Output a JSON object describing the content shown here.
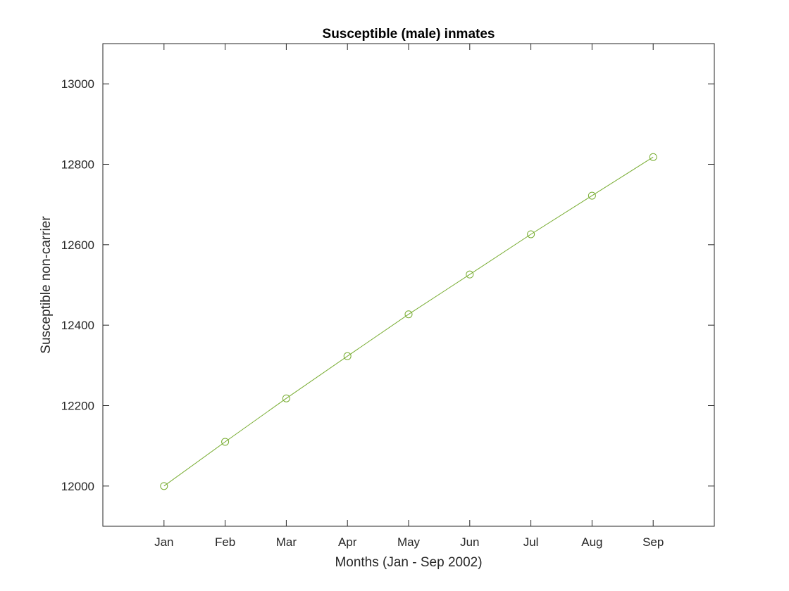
{
  "chart_data": {
    "type": "line",
    "title": "Susceptible (male) inmates",
    "xlabel": "Months (Jan - Sep 2002)",
    "ylabel": "Susceptible non-carrier",
    "categories": [
      "Jan",
      "Feb",
      "Mar",
      "Apr",
      "May",
      "Jun",
      "Jul",
      "Aug",
      "Sep"
    ],
    "series": [
      {
        "values": [
          12000,
          12110,
          12218,
          12323,
          12427,
          12526,
          12626,
          12722,
          12818
        ]
      }
    ],
    "xlim": [
      0,
      10
    ],
    "ylim": [
      11900,
      13100
    ],
    "yticks": [
      12000,
      12200,
      12400,
      12600,
      12800,
      13000
    ],
    "marker": "circle",
    "grid": false,
    "colors": {
      "series": "#77ac30",
      "axes": "#262626",
      "background": "#ffffff"
    }
  }
}
